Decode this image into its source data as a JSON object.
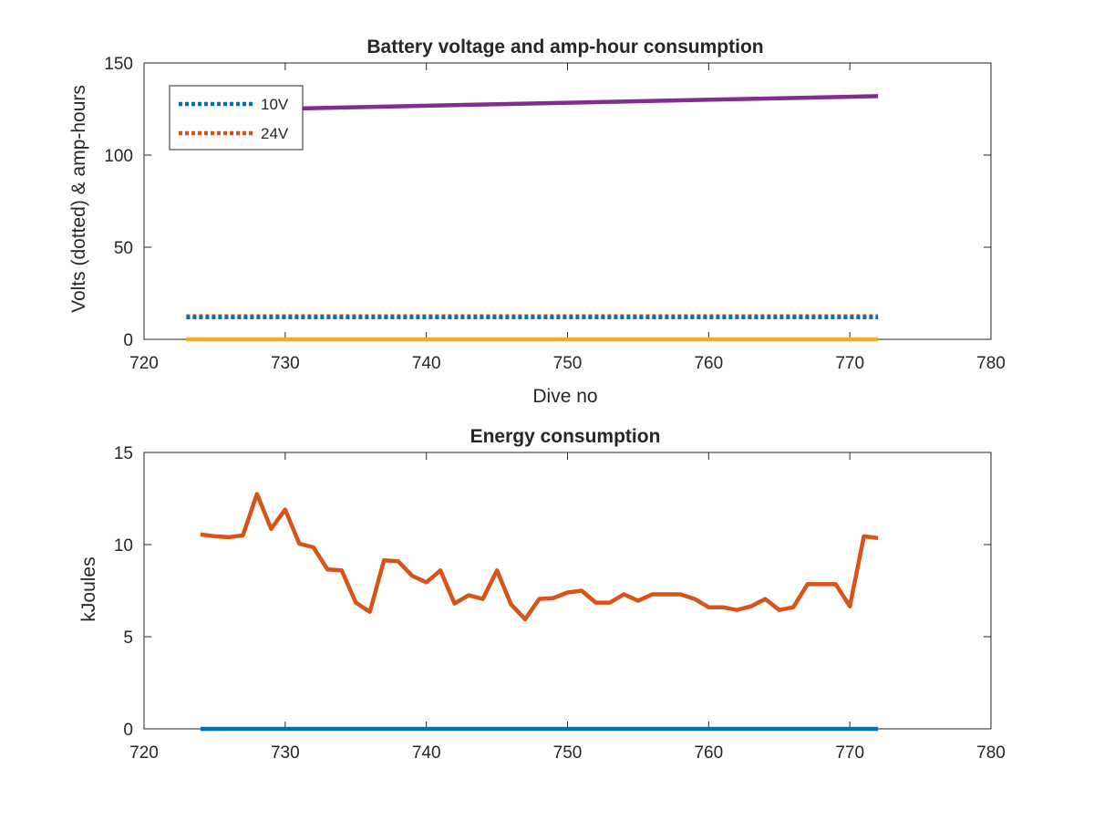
{
  "chart_data": [
    {
      "type": "line",
      "title": "Battery voltage and amp-hour consumption",
      "xlabel": "Dive no",
      "ylabel": "Volts (dotted) & amp-hours",
      "xlim": [
        720,
        780
      ],
      "ylim": [
        0,
        150
      ],
      "xticks": [
        "720",
        "730",
        "740",
        "750",
        "760",
        "770",
        "780"
      ],
      "yticks": [
        "0",
        "50",
        "100",
        "150"
      ],
      "legend": {
        "placement": "top-left",
        "entries": [
          "10V",
          "24V"
        ]
      },
      "grid": false,
      "series": [
        {
          "name": "10V",
          "style": "dotted",
          "color": "#0072BD",
          "x": [
            723,
            772
          ],
          "values": [
            12,
            12
          ]
        },
        {
          "name": "24V",
          "style": "dotted",
          "color": "#D95319",
          "x": [
            723,
            772
          ],
          "values": [
            12.5,
            12.5
          ]
        },
        {
          "style": "solid",
          "color": "#EDB120",
          "x": [
            723,
            772
          ],
          "values": [
            0,
            0
          ]
        },
        {
          "style": "solid",
          "color": "#7E2F8E",
          "x": [
            723,
            772
          ],
          "values": [
            124,
            132
          ]
        }
      ]
    },
    {
      "type": "line",
      "title": "Energy consumption",
      "xlabel": "",
      "ylabel": "kJoules",
      "xlim": [
        720,
        780
      ],
      "ylim": [
        0,
        15
      ],
      "xticks": [
        "720",
        "730",
        "740",
        "750",
        "760",
        "770",
        "780"
      ],
      "yticks": [
        "0",
        "5",
        "10",
        "15"
      ],
      "grid": false,
      "series": [
        {
          "style": "solid",
          "color": "#0072BD",
          "x": [
            724,
            772
          ],
          "values": [
            0,
            0
          ]
        },
        {
          "style": "solid",
          "color": "#D95319",
          "x": [
            724,
            725,
            726,
            727,
            728,
            729,
            730,
            731,
            732,
            733,
            734,
            735,
            736,
            737,
            738,
            739,
            740,
            741,
            742,
            743,
            744,
            745,
            746,
            747,
            748,
            749,
            750,
            751,
            752,
            753,
            754,
            755,
            756,
            757,
            758,
            759,
            760,
            761,
            762,
            763,
            764,
            765,
            766,
            767,
            768,
            769,
            770,
            771,
            772
          ],
          "values": [
            10.55,
            10.45,
            10.4,
            10.5,
            12.75,
            10.85,
            11.9,
            10.05,
            9.85,
            8.65,
            8.6,
            6.85,
            6.35,
            9.15,
            9.1,
            8.3,
            7.95,
            8.6,
            6.8,
            7.25,
            7.05,
            8.6,
            6.75,
            5.95,
            7.05,
            7.1,
            7.4,
            7.5,
            6.85,
            6.85,
            7.3,
            6.95,
            7.3,
            7.3,
            7.3,
            7.05,
            6.6,
            6.6,
            6.45,
            6.65,
            7.05,
            6.45,
            6.6,
            7.85,
            7.85,
            7.85,
            6.65,
            10.45,
            10.35
          ]
        }
      ]
    }
  ]
}
